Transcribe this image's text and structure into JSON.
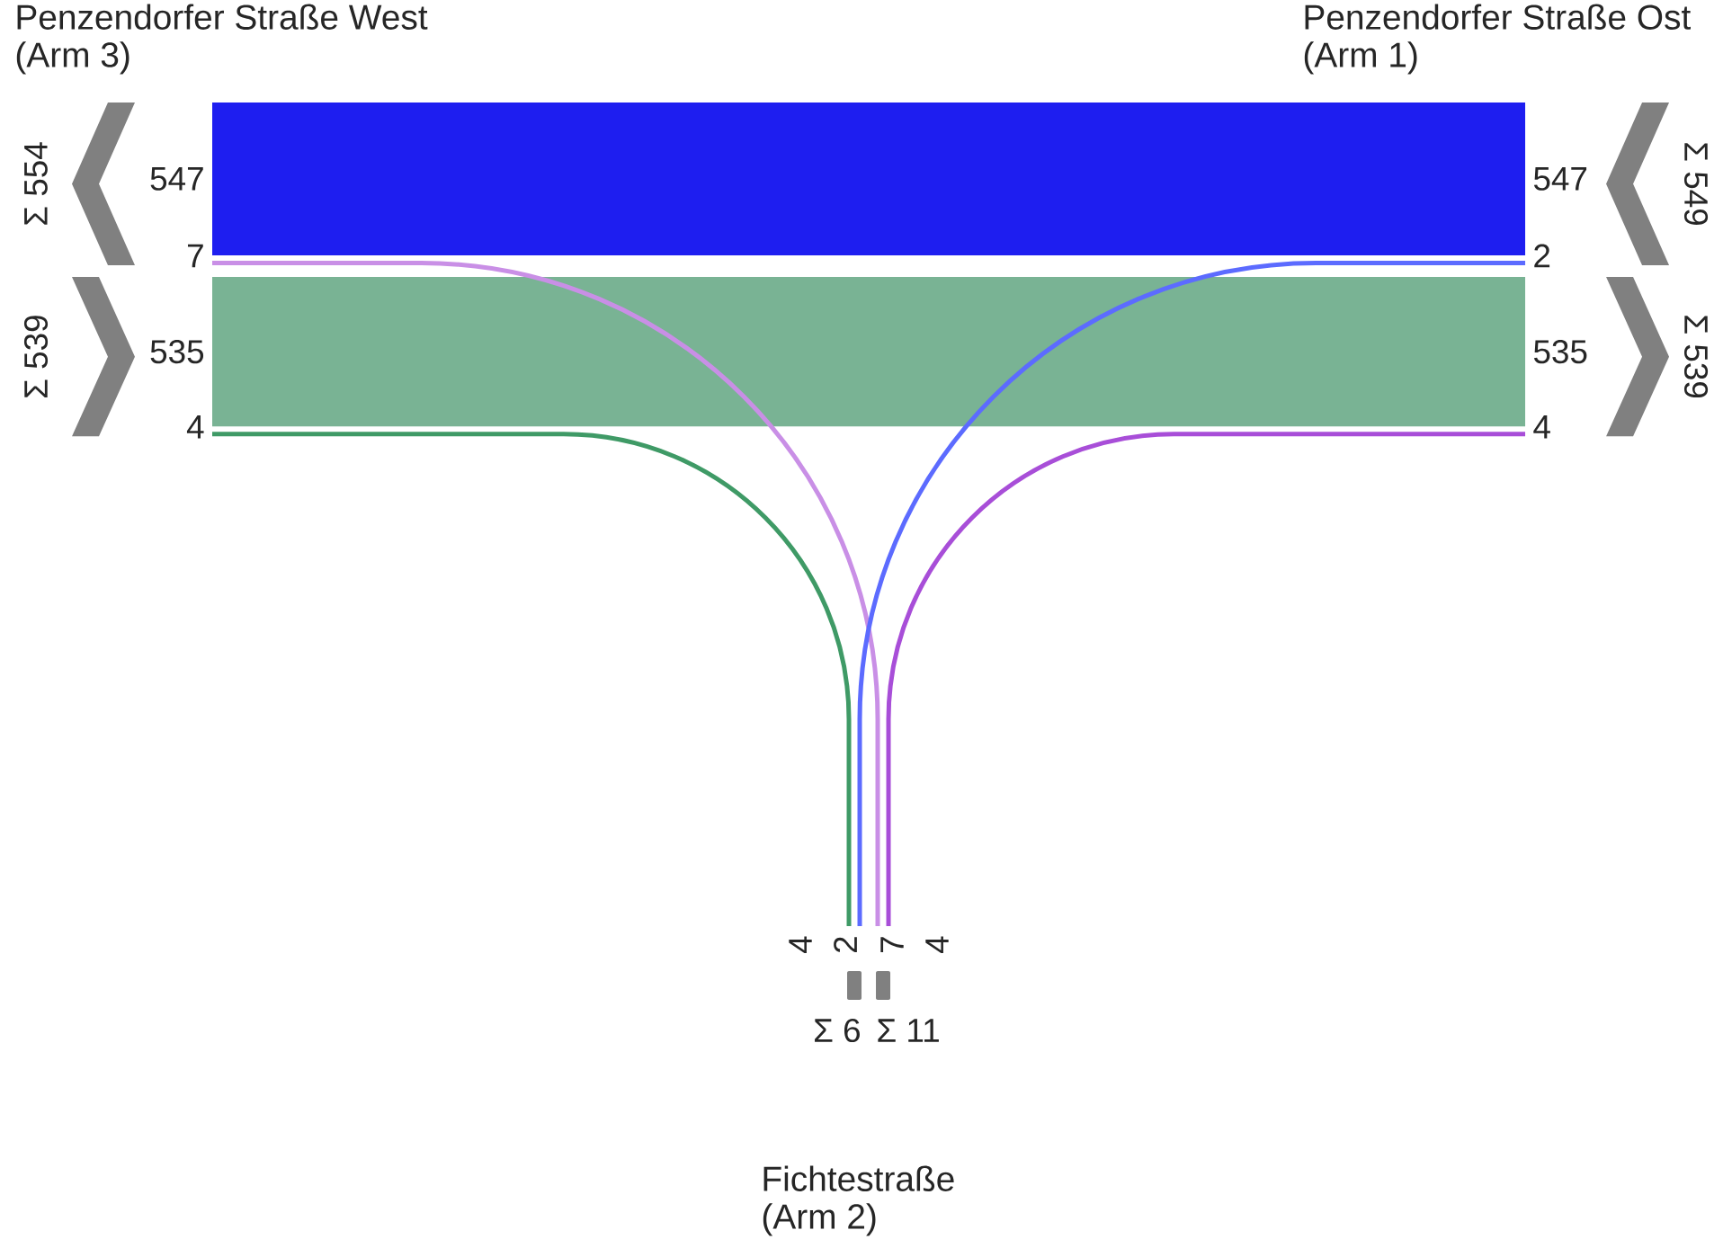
{
  "chart_data": {
    "type": "other",
    "categories": [
      "Penzendorfer Straße West (Arm 3)",
      "Fichtestraße (Arm 2)",
      "Penzendorfer Straße Ost (Arm 1)"
    ],
    "series": [
      {
        "color": "#1e1ef0",
        "values": [
          547,
          null,
          547
        ]
      },
      {
        "color": "#c98fe6",
        "values": [
          7,
          7,
          null
        ]
      },
      {
        "color": "#5c6bff",
        "values": [
          null,
          2,
          2
        ]
      },
      {
        "color": "#79b394",
        "values": [
          535,
          null,
          535
        ]
      },
      {
        "color": "#3f9a66",
        "values": [
          4,
          4,
          null
        ]
      },
      {
        "color": "#a84ed8",
        "values": [
          null,
          4,
          4
        ]
      }
    ],
    "data_labels": true,
    "annotations": [
      "Σ 554",
      "Σ 539",
      "Σ 549",
      "Σ 539",
      "Σ 6",
      "Σ 11"
    ]
  }
}
